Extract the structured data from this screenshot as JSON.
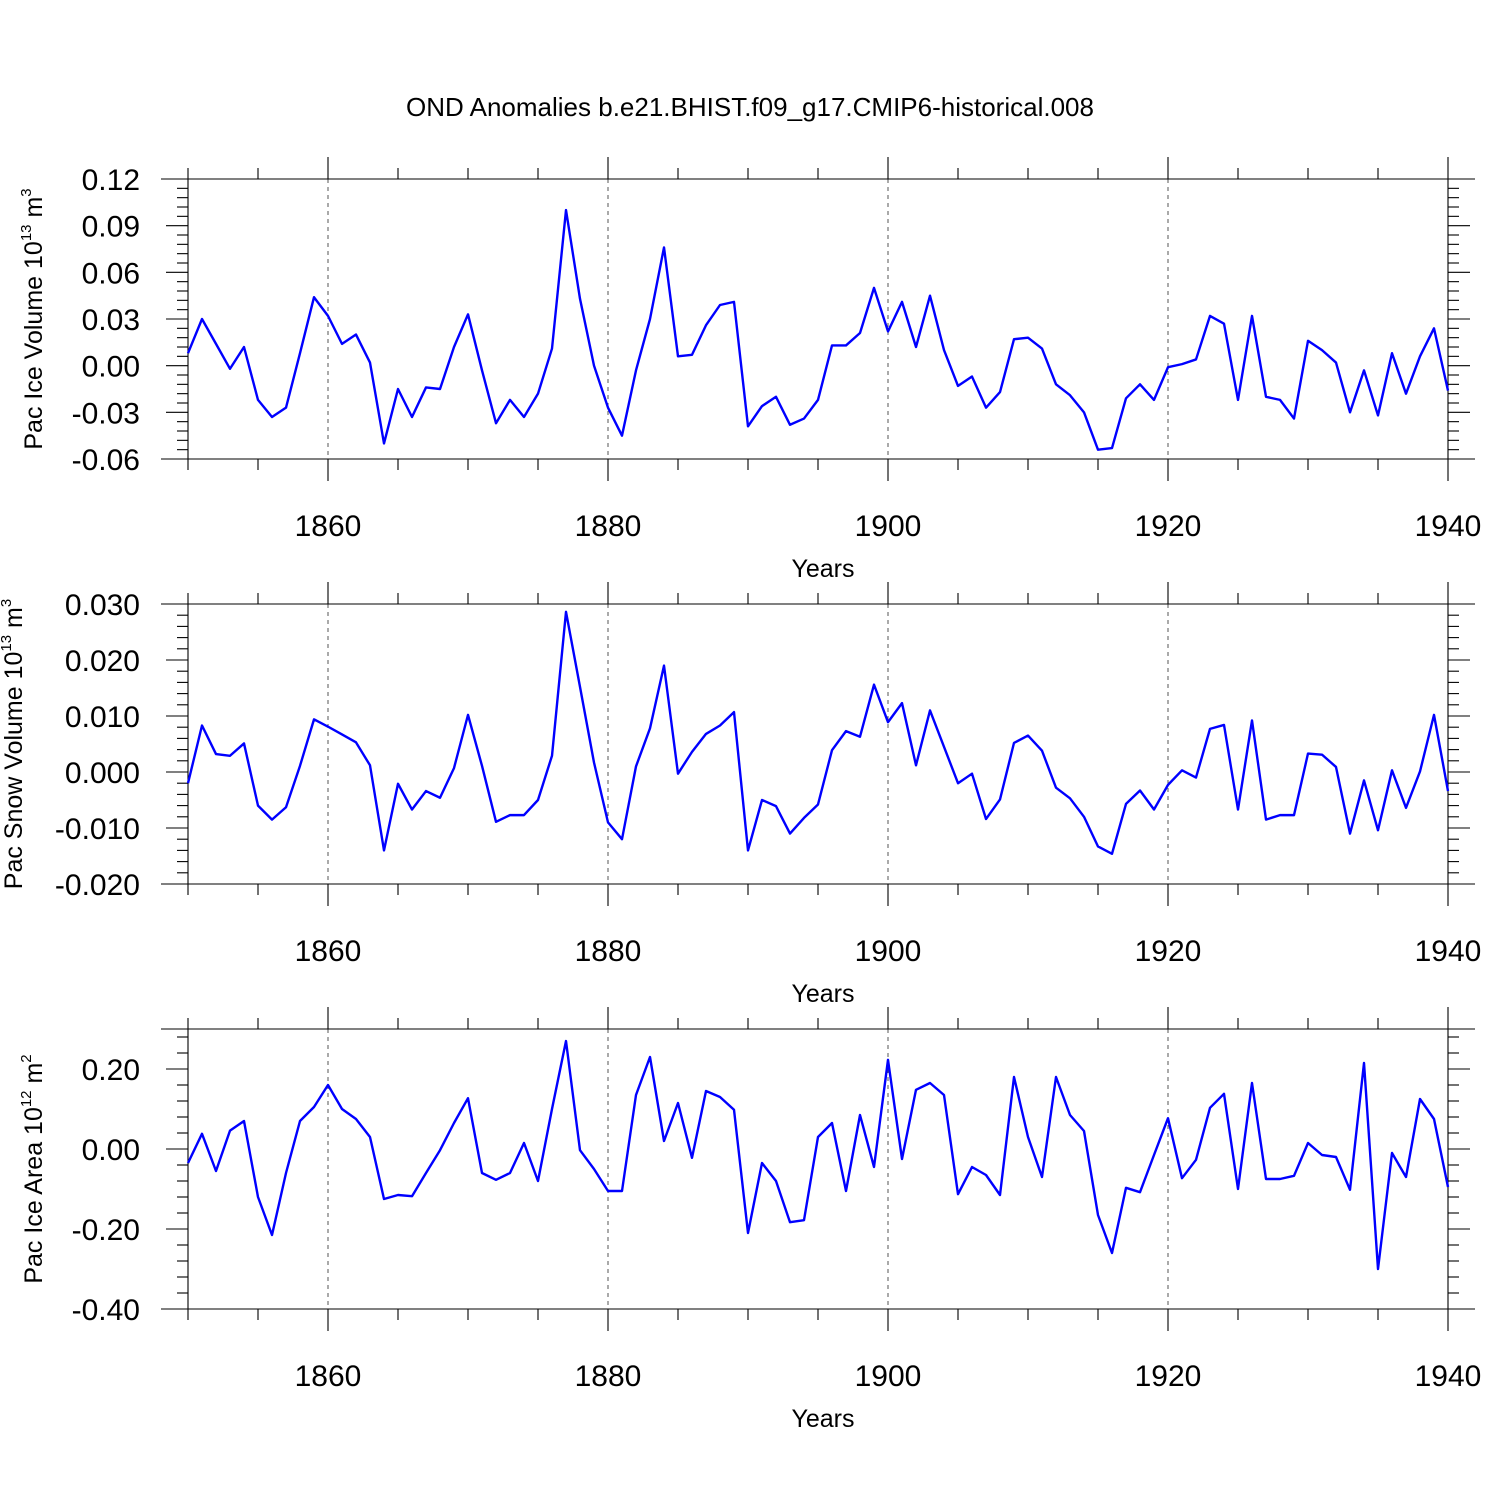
{
  "title": "OND Anomalies b.e21.BHIST.f09_g17.CMIP6-historical.008",
  "line_color": "#0000ff",
  "chart_data": [
    {
      "type": "line",
      "ylabel": {
        "text": "Pac Ice Volume 10",
        "exp": "13",
        "unit": " m",
        "unit_exp": "3"
      },
      "xlabel": "Years",
      "xlim": [
        1850,
        1940
      ],
      "ylim": [
        -0.06,
        0.12
      ],
      "yticks": [
        0.12,
        0.09,
        0.06,
        0.03,
        0.0,
        -0.03,
        -0.06
      ],
      "ytick_labels": [
        "0.12",
        "0.09",
        "0.06",
        "0.03",
        "0.00",
        "-0.03",
        "-0.06"
      ],
      "xticks": [
        1860,
        1880,
        1900,
        1920,
        1940
      ],
      "xtick_labels": [
        "1860",
        "1880",
        "1900",
        "1920",
        "1940"
      ],
      "grid_x": [
        1860,
        1880,
        1900,
        1920
      ],
      "x_start": 1850,
      "values": [
        0.008,
        0.03,
        0.014,
        -0.002,
        0.012,
        -0.022,
        -0.033,
        -0.027,
        0.008,
        0.044,
        0.032,
        0.014,
        0.02,
        0.002,
        -0.05,
        -0.015,
        -0.033,
        -0.014,
        -0.015,
        0.012,
        0.033,
        -0.003,
        -0.037,
        -0.022,
        -0.033,
        -0.018,
        0.011,
        0.1,
        0.043,
        0.0,
        -0.027,
        -0.045,
        -0.003,
        0.03,
        0.076,
        0.006,
        0.007,
        0.026,
        0.039,
        0.041,
        -0.039,
        -0.026,
        -0.02,
        -0.038,
        -0.034,
        -0.022,
        0.013,
        0.013,
        0.021,
        0.05,
        0.022,
        0.041,
        0.012,
        0.045,
        0.01,
        -0.013,
        -0.007,
        -0.027,
        -0.017,
        0.017,
        0.018,
        0.011,
        -0.012,
        -0.019,
        -0.03,
        -0.054,
        -0.053,
        -0.021,
        -0.012,
        -0.022,
        -0.001,
        0.001,
        0.004,
        0.032,
        0.027,
        -0.022,
        0.032,
        -0.02,
        -0.022,
        -0.034,
        0.016,
        0.01,
        0.002,
        -0.03,
        -0.003,
        -0.032,
        0.008,
        -0.018,
        0.006,
        0.024,
        -0.016
      ]
    },
    {
      "type": "line",
      "ylabel": {
        "text": "Pac Snow Volume 10",
        "exp": "13",
        "unit": " m",
        "unit_exp": "3"
      },
      "xlabel": "Years",
      "xlim": [
        1850,
        1940
      ],
      "ylim": [
        -0.02,
        0.03
      ],
      "yticks": [
        0.03,
        0.02,
        0.01,
        0.0,
        -0.01,
        -0.02
      ],
      "ytick_labels": [
        "0.030",
        "0.020",
        "0.010",
        "0.000",
        "-0.010",
        "-0.020"
      ],
      "xticks": [
        1860,
        1880,
        1900,
        1920,
        1940
      ],
      "xtick_labels": [
        "1860",
        "1880",
        "1900",
        "1920",
        "1940"
      ],
      "grid_x": [
        1860,
        1880,
        1900,
        1920
      ],
      "x_start": 1850,
      "values": [
        -0.002,
        0.0083,
        0.0032,
        0.0029,
        0.0051,
        -0.006,
        -0.0085,
        -0.0063,
        0.0011,
        0.0094,
        0.0081,
        0.0067,
        0.0053,
        0.0012,
        -0.014,
        -0.0021,
        -0.0067,
        -0.0034,
        -0.0046,
        0.0007,
        0.0102,
        0.0011,
        -0.0089,
        -0.0077,
        -0.0077,
        -0.005,
        0.0029,
        0.0286,
        0.0152,
        0.0017,
        -0.009,
        -0.012,
        0.001,
        0.0078,
        0.019,
        -0.0003,
        0.0036,
        0.0068,
        0.0083,
        0.0107,
        -0.014,
        -0.005,
        -0.0061,
        -0.011,
        -0.0082,
        -0.0058,
        0.0039,
        0.0073,
        0.0063,
        0.0156,
        0.0089,
        0.0123,
        0.0012,
        0.011,
        0.0045,
        -0.002,
        -0.0003,
        -0.0084,
        -0.0049,
        0.0052,
        0.0065,
        0.0038,
        -0.0028,
        -0.0047,
        -0.008,
        -0.0133,
        -0.0146,
        -0.0057,
        -0.0033,
        -0.0067,
        -0.0023,
        0.0003,
        -0.001,
        0.0077,
        0.0084,
        -0.0067,
        0.0092,
        -0.0085,
        -0.0077,
        -0.0077,
        0.0033,
        0.0031,
        0.0009,
        -0.011,
        -0.0015,
        -0.0104,
        0.0003,
        -0.0064,
        0.0001,
        0.0102,
        -0.0034
      ]
    },
    {
      "type": "line",
      "ylabel": {
        "text": "Pac Ice Area 10",
        "exp": "12",
        "unit": " m",
        "unit_exp": "2"
      },
      "xlabel": "Years",
      "xlim": [
        1850,
        1940
      ],
      "ylim": [
        -0.4,
        0.3
      ],
      "yticks": [
        0.2,
        0.0,
        -0.2,
        -0.4
      ],
      "ytick_labels": [
        "0.20",
        "0.00",
        "-0.20",
        "-0.40"
      ],
      "xticks": [
        1860,
        1880,
        1900,
        1920,
        1940
      ],
      "xtick_labels": [
        "1860",
        "1880",
        "1900",
        "1920",
        "1940"
      ],
      "grid_x": [
        1860,
        1880,
        1900,
        1920
      ],
      "x_start": 1850,
      "values": [
        -0.035,
        0.038,
        -0.055,
        0.046,
        0.07,
        -0.12,
        -0.215,
        -0.06,
        0.07,
        0.105,
        0.16,
        0.1,
        0.075,
        0.03,
        -0.125,
        -0.115,
        -0.118,
        -0.06,
        -0.003,
        0.065,
        0.127,
        -0.06,
        -0.077,
        -0.06,
        0.015,
        -0.08,
        0.1,
        0.27,
        -0.003,
        -0.05,
        -0.105,
        -0.105,
        0.135,
        0.23,
        0.02,
        0.115,
        -0.022,
        0.145,
        0.13,
        0.098,
        -0.21,
        -0.035,
        -0.08,
        -0.183,
        -0.178,
        0.03,
        0.065,
        -0.105,
        0.085,
        -0.045,
        0.223,
        -0.025,
        0.148,
        0.165,
        0.135,
        -0.113,
        -0.045,
        -0.065,
        -0.115,
        0.18,
        0.03,
        -0.07,
        0.18,
        0.085,
        0.045,
        -0.165,
        -0.26,
        -0.097,
        -0.108,
        -0.015,
        0.077,
        -0.073,
        -0.027,
        0.103,
        0.138,
        -0.1,
        0.165,
        -0.075,
        -0.075,
        -0.067,
        0.015,
        -0.015,
        -0.02,
        -0.102,
        0.215,
        -0.3,
        -0.01,
        -0.07,
        0.125,
        0.075,
        -0.095
      ]
    }
  ]
}
